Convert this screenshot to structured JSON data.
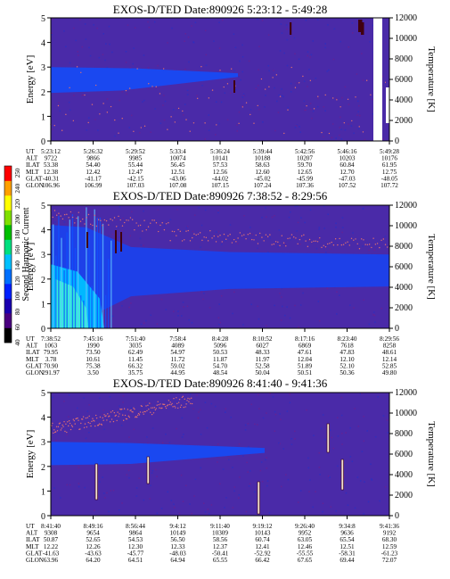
{
  "colorbar": {
    "label": "Second Harmonic Current",
    "ticks": [
      "40",
      "60",
      "80",
      "100",
      "120",
      "140",
      "160",
      "180",
      "200",
      "220",
      "240",
      "250"
    ],
    "colors": [
      "#000000",
      "#4a0080",
      "#1a00b0",
      "#0020ff",
      "#0070ff",
      "#00c0ff",
      "#00e080",
      "#00c000",
      "#80e000",
      "#ffff00",
      "#ffa000",
      "#ff0000"
    ]
  },
  "chart_data": [
    {
      "type": "heatmap",
      "title": "EXOS-D/TED   Date:890926  5:23:12 - 5:49:28",
      "ylabel": "Energy [eV]",
      "y2label": "Temperature [K]",
      "ylim": [
        0,
        5
      ],
      "y2lim": [
        0,
        12000
      ],
      "yticks": [
        "0",
        "1",
        "2",
        "3",
        "4",
        "5"
      ],
      "y2ticks": [
        "0",
        "2000",
        "4000",
        "6000",
        "8000",
        "10000",
        "12000"
      ],
      "table_labels": [
        "UT",
        "ALT",
        "ILAT",
        "MLT",
        "GLAT",
        "GLON"
      ],
      "table": [
        [
          "5:23:12",
          "5:26:32",
          "5:29:52",
          "5:33:4",
          "5:36:24",
          "5:39:44",
          "5:42:56",
          "5:46:16",
          "5:49:28"
        ],
        [
          "9722",
          "9866",
          "9985",
          "10074",
          "10141",
          "10188",
          "10207",
          "10203",
          "10176"
        ],
        [
          "53.38",
          "54.40",
          "55.44",
          "56.45",
          "57.53",
          "58.63",
          "59.70",
          "60.84",
          "61.95"
        ],
        [
          "12.38",
          "12.42",
          "12.47",
          "12.51",
          "12.56",
          "12.60",
          "12.65",
          "12.70",
          "12.75"
        ],
        [
          "-40.31",
          "-41.17",
          "-42.15",
          "-43.06",
          "-44.02",
          "-45.02",
          "-45.99",
          "-47.03",
          "-48.05"
        ],
        [
          "106.96",
          "106.99",
          "107.03",
          "107.08",
          "107.15",
          "107.24",
          "107.36",
          "107.52",
          "107.72"
        ]
      ]
    },
    {
      "type": "heatmap",
      "title": "EXOS-D/TED   Date:890926  7:38:52 - 8:29:56",
      "ylabel": "Energy [eV]",
      "y2label": "Temperature [K]",
      "ylim": [
        0,
        5
      ],
      "y2lim": [
        0,
        12000
      ],
      "yticks": [
        "0",
        "1",
        "2",
        "3",
        "4",
        "5"
      ],
      "y2ticks": [
        "0",
        "2000",
        "4000",
        "6000",
        "8000",
        "10000",
        "12000"
      ],
      "table_labels": [
        "UT",
        "ALT",
        "ILAT",
        "MLT",
        "GLAT",
        "GLON"
      ],
      "table": [
        [
          "7:38:52",
          "7:45:16",
          "7:51:40",
          "7:58:4",
          "8:4:28",
          "8:10:52",
          "8:17:16",
          "8:23:40",
          "8:29:56"
        ],
        [
          "1063",
          "1990",
          "3035",
          "4089",
          "5096",
          "6027",
          "6869",
          "7618",
          "8258"
        ],
        [
          "79.95",
          "73.50",
          "62.49",
          "54.97",
          "50.53",
          "48.33",
          "47.61",
          "47.83",
          "48.61"
        ],
        [
          "3.78",
          "10.61",
          "11.45",
          "11.72",
          "11.87",
          "11.97",
          "12.04",
          "12.10",
          "12.14"
        ],
        [
          "70.90",
          "75.38",
          "66.32",
          "59.02",
          "54.70",
          "52.58",
          "51.89",
          "52.10",
          "52.85"
        ],
        [
          "291.97",
          "3.50",
          "35.75",
          "44.95",
          "48.54",
          "50.04",
          "50.51",
          "50.36",
          "49.80"
        ]
      ]
    },
    {
      "type": "heatmap",
      "title": "EXOS-D/TED   Date:890926  8:41:40 - 9:41:36",
      "ylabel": "Energy [eV]",
      "y2label": "Temperature [K]",
      "ylim": [
        0,
        5
      ],
      "y2lim": [
        0,
        12000
      ],
      "yticks": [
        "0",
        "1",
        "2",
        "3",
        "4",
        "5"
      ],
      "y2ticks": [
        "0",
        "2000",
        "4000",
        "6000",
        "8000",
        "10000",
        "12000"
      ],
      "table_labels": [
        "UT",
        "ALT",
        "ILAT",
        "MLT",
        "GLAT",
        "GLON"
      ],
      "table": [
        [
          "8:41:40",
          "8:49:16",
          "8:56:44",
          "9:4:12",
          "9:11:40",
          "9:19:12",
          "9:26:40",
          "9:34:8",
          "9:41:36"
        ],
        [
          "9308",
          "9654",
          "9864",
          "10149",
          "10309",
          "10143",
          "9952",
          "9636",
          "9192"
        ],
        [
          "50.87",
          "52.65",
          "54.53",
          "56.50",
          "58.56",
          "60.74",
          "63.05",
          "65.54",
          "68.30"
        ],
        [
          "12.22",
          "12.26",
          "12.30",
          "12.33",
          "12.37",
          "12.41",
          "12.46",
          "12.51",
          "12.59"
        ],
        [
          "-41.63",
          "-43.63",
          "-45.77",
          "-48.03",
          "-50.41",
          "-52.92",
          "-55.55",
          "-58.31",
          "-61.23"
        ],
        [
          "63.96",
          "64.20",
          "64.51",
          "64.94",
          "65.55",
          "66.42",
          "67.65",
          "69.44",
          "72.07"
        ]
      ]
    }
  ]
}
